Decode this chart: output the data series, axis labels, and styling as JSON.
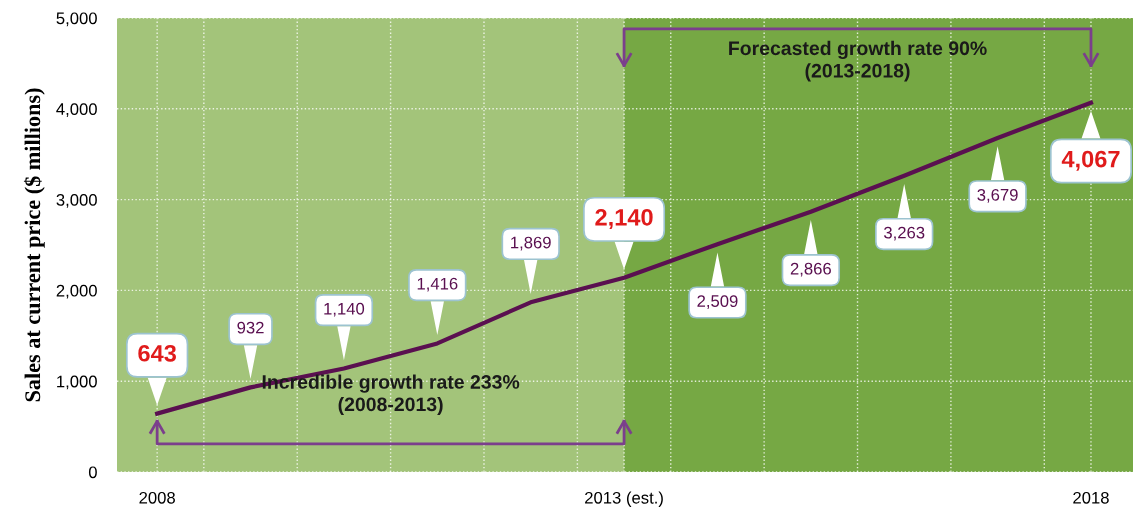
{
  "chart_data": {
    "type": "line",
    "ylabel": "Sales at current price ($ millions)",
    "x": [
      2008,
      2009,
      2010,
      2011,
      2012,
      2013,
      2014,
      2015,
      2016,
      2017,
      2018
    ],
    "series": [
      {
        "color": "#5a1050",
        "values": [
          643,
          932,
          1140,
          1416,
          1869,
          2140,
          2509,
          2866,
          3263,
          3679,
          4067
        ],
        "value_labels": [
          "643",
          "932",
          "1,140",
          "1,416",
          "1,869",
          "2,140",
          "2,509",
          "2,866",
          "3,263",
          "3,679",
          "4,067"
        ]
      }
    ],
    "xlim": [
      2007.57,
      2018.45
    ],
    "xticks": [
      {
        "value": 2008,
        "label": "2008"
      },
      {
        "value": 2008.5,
        "label": null
      },
      {
        "value": 2009.5,
        "label": null
      },
      {
        "value": 2010.5,
        "label": null
      },
      {
        "value": 2011.5,
        "label": null
      },
      {
        "value": 2012.5,
        "label": null
      },
      {
        "value": 2013,
        "label": "2013 (est.)"
      },
      {
        "value": 2013.5,
        "label": null
      },
      {
        "value": 2014.5,
        "label": null
      },
      {
        "value": 2015.5,
        "label": null
      },
      {
        "value": 2016.5,
        "label": null
      },
      {
        "value": 2017.5,
        "label": null
      },
      {
        "value": 2018,
        "label": "2018"
      }
    ],
    "ylim": [
      0,
      5000
    ],
    "yticks": [
      {
        "value": 0,
        "label": "0"
      },
      {
        "value": 1000,
        "label": "1,000"
      },
      {
        "value": 2000,
        "label": "2,000"
      },
      {
        "value": 3000,
        "label": "3,000"
      },
      {
        "value": 4000,
        "label": "4,000"
      },
      {
        "value": 5000,
        "label": "5,000"
      }
    ],
    "bands": [
      {
        "axis": "x",
        "from": 2007.57,
        "to": 2013,
        "label": null,
        "color": "#a3c47a"
      },
      {
        "axis": "x",
        "from": 2013,
        "to": 2018.45,
        "label": null,
        "color": "#76a844"
      }
    ],
    "annotations": [
      "Incredible growth rate 233%\n(2008-2013)",
      "Forecasted growth rate 90%\n(2013-2018)"
    ],
    "grid": true,
    "marker": "none",
    "line_style": "solid"
  }
}
